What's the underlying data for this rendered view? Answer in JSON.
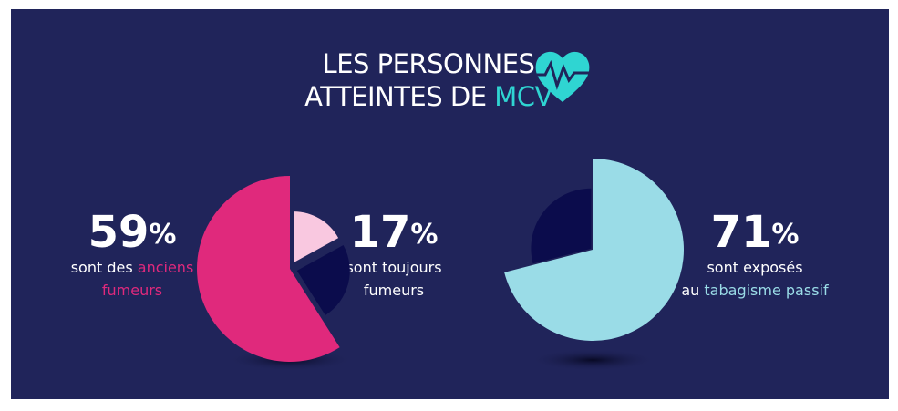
{
  "title": [
    [
      {
        "text": "LES PERSONNES"
      }
    ],
    [
      {
        "text": "ATTEINTES DE "
      },
      {
        "text": "MCV",
        "color": "#2fd5d2"
      }
    ]
  ],
  "chart_data": [
    {
      "type": "pie",
      "categories": [
        null,
        null,
        null
      ],
      "values": [
        59,
        17,
        24
      ],
      "value_labels": [
        "59%",
        "17%",
        null
      ],
      "colors": [
        "#e0297c",
        "#f9c8e0",
        "#0b0c4c"
      ],
      "captions": [
        [
          [
            {
              "text": "sont des "
            },
            {
              "text": "anciens",
              "color": "#e0297c"
            }
          ],
          [
            {
              "text": "fumeurs",
              "color": "#e0297c"
            }
          ]
        ],
        [
          [
            {
              "text": "sont toujours"
            }
          ],
          [
            {
              "text": "fumeurs"
            }
          ]
        ],
        null
      ]
    },
    {
      "type": "pie",
      "categories": [
        null,
        null
      ],
      "values": [
        71,
        29
      ],
      "value_labels": [
        "71%",
        null
      ],
      "colors": [
        "#9adce7",
        "#0b0c4c"
      ],
      "captions": [
        [
          [
            {
              "text": "sont exposés"
            }
          ],
          [
            {
              "text": "au "
            },
            {
              "text": "tabagisme passif",
              "color": "#9adce7"
            }
          ]
        ],
        null
      ]
    }
  ]
}
